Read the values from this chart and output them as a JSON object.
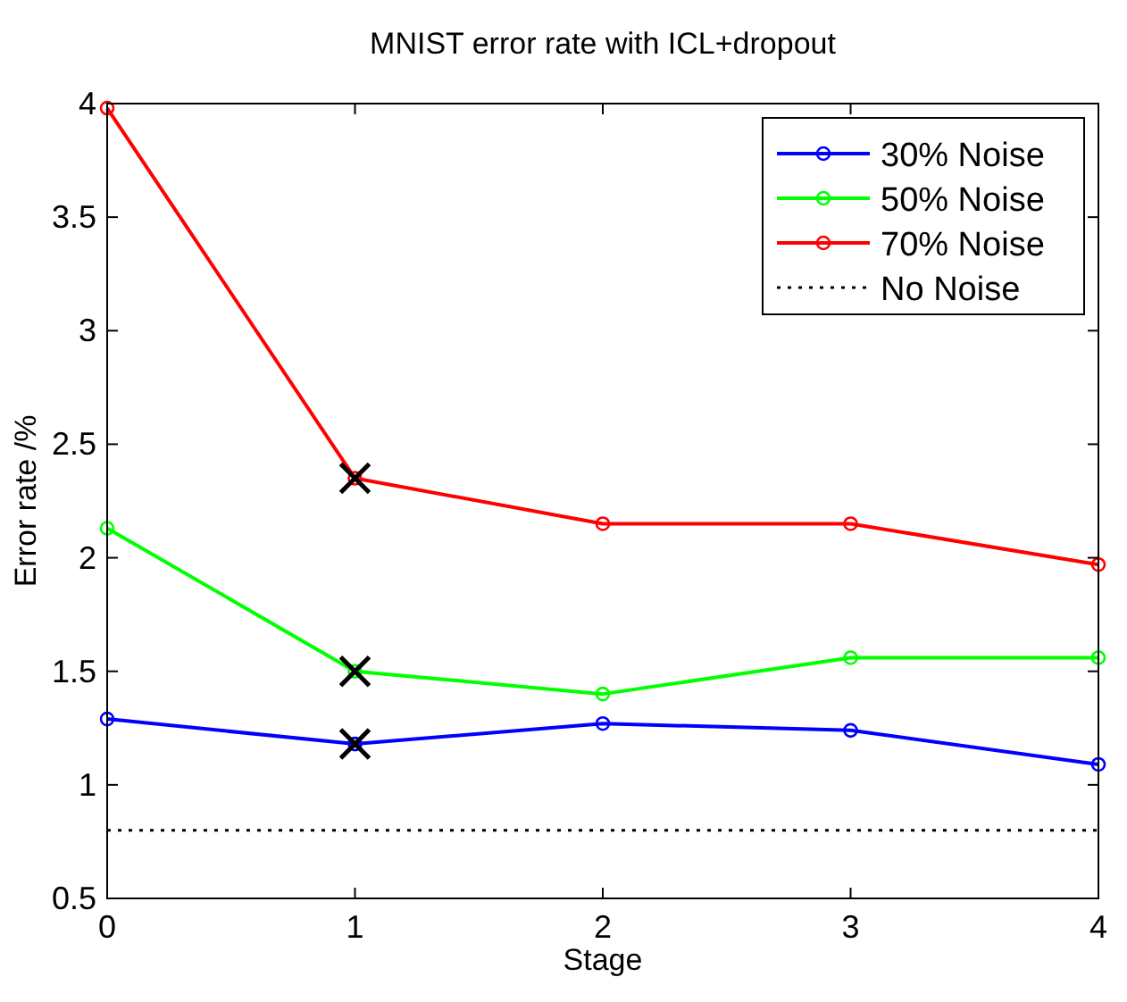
{
  "chart_data": {
    "type": "line",
    "title": "MNIST error rate with ICL+dropout",
    "xlabel": "Stage",
    "ylabel": "Error rate /%",
    "x": [
      0,
      1,
      2,
      3,
      4
    ],
    "xlim": [
      0,
      4
    ],
    "xticks": [
      0,
      1,
      2,
      3,
      4
    ],
    "ylim": [
      0.5,
      4
    ],
    "yticks": [
      0.5,
      1,
      1.5,
      2,
      2.5,
      3,
      3.5,
      4
    ],
    "grid": false,
    "legend": "top right",
    "marker": "circle",
    "line_style": "solid",
    "series": [
      {
        "name": "30% Noise",
        "color": "#0000ff",
        "values": [
          1.29,
          1.18,
          1.27,
          1.24,
          1.09
        ]
      },
      {
        "name": "50% Noise",
        "color": "#00ff00",
        "values": [
          2.13,
          1.5,
          1.4,
          1.56,
          1.56
        ]
      },
      {
        "name": "70% Noise",
        "color": "#ff0000",
        "values": [
          3.98,
          2.35,
          2.15,
          2.15,
          1.97
        ]
      },
      {
        "name": "No Noise",
        "color": "#000000",
        "values": [
          0.8,
          0.8,
          0.8,
          0.8,
          0.8
        ],
        "marker": "none",
        "line_style": "dotted"
      },
      {
        "type": "scatter",
        "color": "#000000",
        "values": [
          null,
          2.35,
          null,
          null,
          null
        ],
        "marker": "cross"
      },
      {
        "type": "scatter",
        "color": "#000000",
        "values": [
          null,
          1.5,
          null,
          null,
          null
        ],
        "marker": "cross"
      },
      {
        "type": "scatter",
        "color": "#000000",
        "values": [
          null,
          1.18,
          null,
          null,
          null
        ],
        "marker": "cross"
      }
    ]
  }
}
